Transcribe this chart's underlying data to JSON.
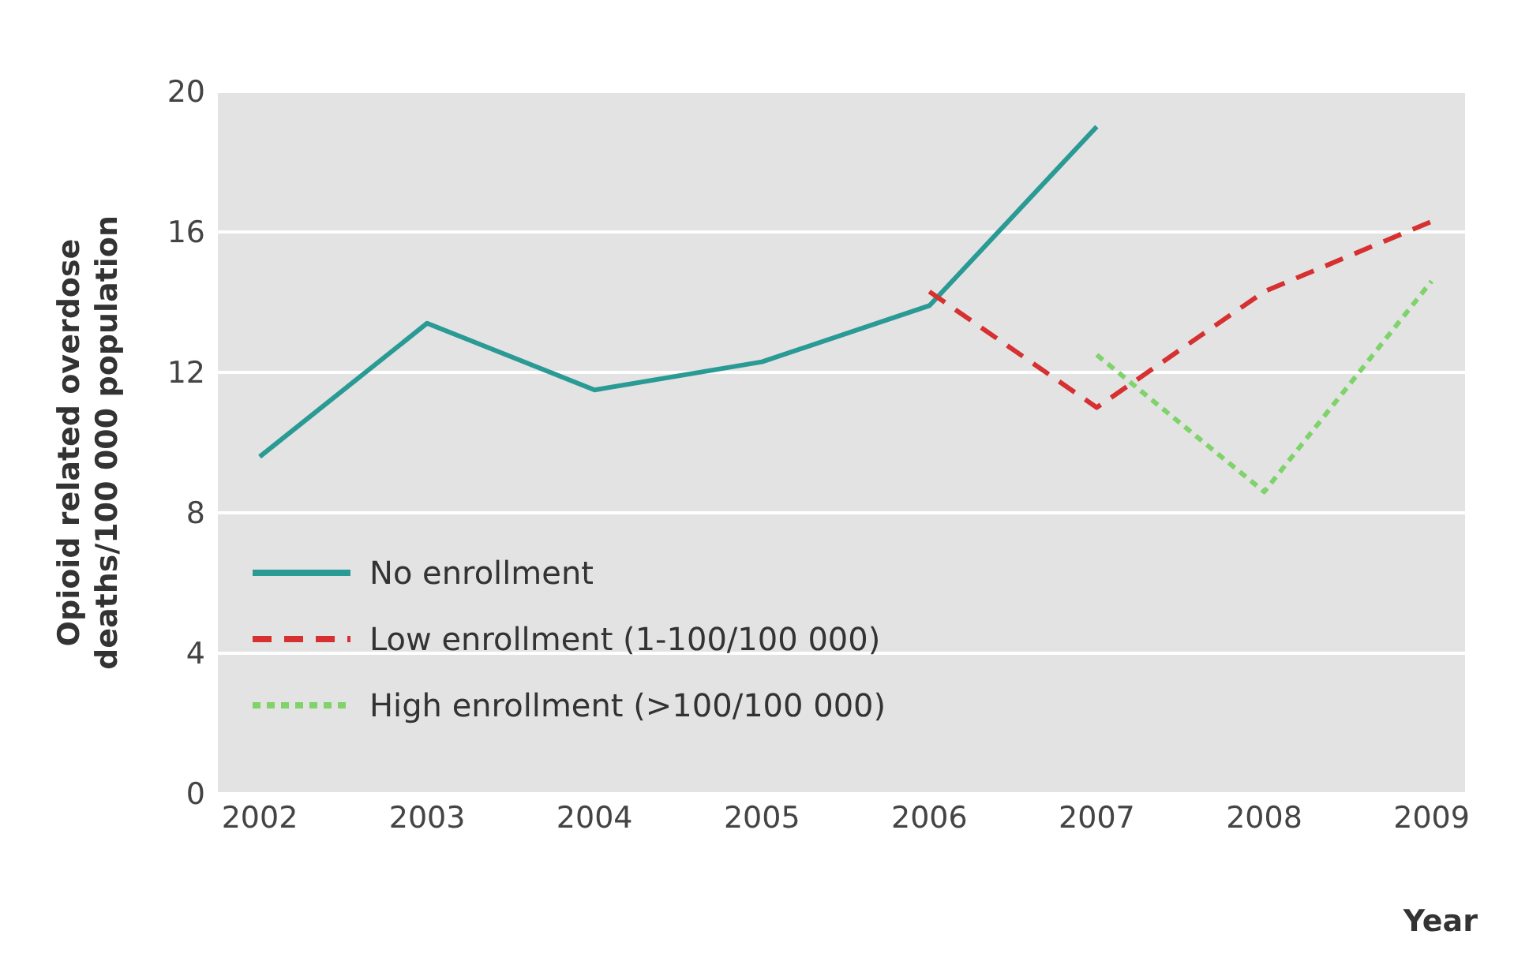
{
  "chart_data": {
    "type": "line",
    "xlabel": "Year",
    "ylabel": "Opioid related overdose deaths/100 000 population",
    "xlim": [
      2001.75,
      2009.2
    ],
    "xticks": [
      2002,
      2003,
      2004,
      2005,
      2006,
      2007,
      2008,
      2009
    ],
    "ylim": [
      0,
      20
    ],
    "yticks": [
      0,
      4,
      8,
      12,
      16,
      20
    ],
    "grid": "y",
    "legend": "bottom left",
    "marker": "none",
    "series": [
      {
        "name": "No enrollment",
        "color": "#2a9a94",
        "line_style": "solid",
        "x": [
          2002,
          2003,
          2004,
          2005,
          2006,
          2007
        ],
        "values": [
          9.6,
          13.4,
          11.5,
          12.3,
          13.9,
          19
        ]
      },
      {
        "name": "Low enrollment (1-100/100 000)",
        "color": "#d63031",
        "line_style": "dashed",
        "x": [
          2006,
          2007,
          2008,
          2009
        ],
        "values": [
          14.3,
          11,
          14.3,
          16.3
        ]
      },
      {
        "name": "High enrollment (>100/100 000)",
        "color": "#7fd36a",
        "line_style": "dotted",
        "x": [
          2007,
          2008,
          2009
        ],
        "values": [
          12.5,
          8.6,
          14.6
        ]
      }
    ]
  }
}
